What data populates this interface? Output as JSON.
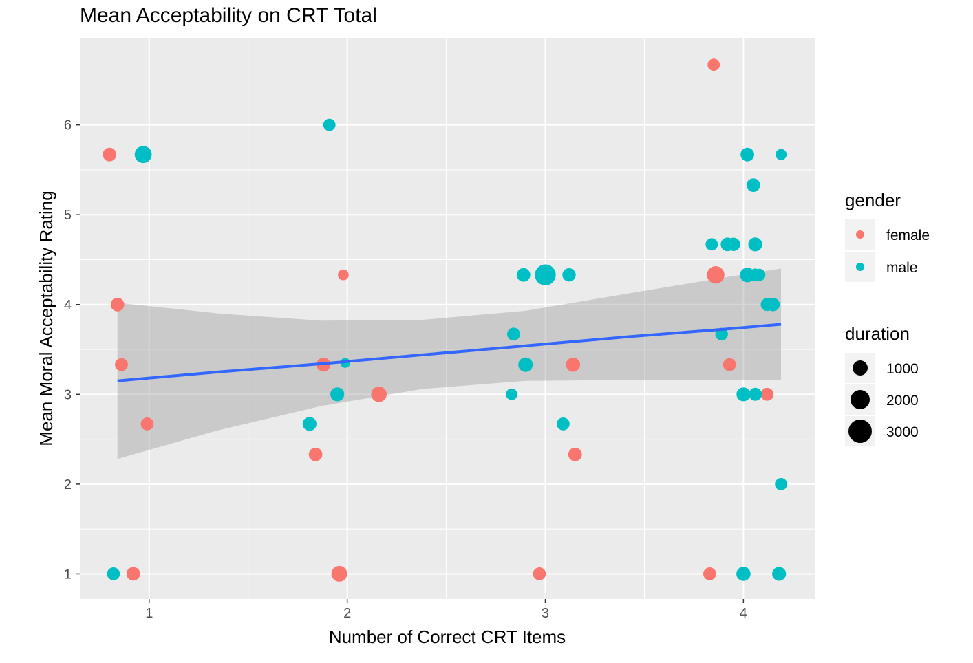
{
  "chart_data": {
    "type": "scatter",
    "title": "Mean Acceptability on CRT Total",
    "xlabel": "Number of Correct CRT Items",
    "ylabel": "Mean Moral Acceptability Rating",
    "xlim": [
      0.65,
      4.36
    ],
    "ylim": [
      0.72,
      6.97
    ],
    "x_ticks": [
      1,
      2,
      3,
      4
    ],
    "y_ticks": [
      1,
      2,
      3,
      4,
      5,
      6
    ],
    "grid": true,
    "legend_position": "right",
    "colors": {
      "female": "#F8766D",
      "male": "#00BFC4",
      "trend": "#3366FF",
      "band": "#999999",
      "panel": "#EBEBEB"
    },
    "legends": {
      "gender": {
        "title": "gender",
        "entries": [
          "female",
          "male"
        ]
      },
      "duration": {
        "title": "duration",
        "entries": [
          "1000",
          "2000",
          "3000"
        ],
        "values": [
          1000,
          2000,
          3000
        ]
      }
    },
    "trend": {
      "x": [
        0.84,
        1.35,
        1.87,
        2.38,
        2.9,
        3.41,
        3.93,
        4.19
      ],
      "y": [
        3.15,
        3.25,
        3.34,
        3.44,
        3.54,
        3.64,
        3.73,
        3.78
      ],
      "lower": [
        2.28,
        2.6,
        2.87,
        3.06,
        3.15,
        3.16,
        3.16,
        3.16
      ],
      "upper": [
        4.02,
        3.9,
        3.82,
        3.83,
        3.93,
        4.12,
        4.31,
        4.4
      ]
    },
    "series": [
      {
        "name": "female",
        "points": [
          {
            "x": 0.8,
            "y": 5.67,
            "duration": 1500
          },
          {
            "x": 0.84,
            "y": 4.0,
            "duration": 1500
          },
          {
            "x": 0.86,
            "y": 3.33,
            "duration": 1300
          },
          {
            "x": 0.99,
            "y": 2.67,
            "duration": 1300
          },
          {
            "x": 0.92,
            "y": 1.0,
            "duration": 1500
          },
          {
            "x": 1.88,
            "y": 3.33,
            "duration": 1600
          },
          {
            "x": 1.98,
            "y": 4.33,
            "duration": 700
          },
          {
            "x": 2.16,
            "y": 3.0,
            "duration": 2200
          },
          {
            "x": 1.84,
            "y": 2.33,
            "duration": 1500
          },
          {
            "x": 1.96,
            "y": 1.0,
            "duration": 2300
          },
          {
            "x": 3.14,
            "y": 3.33,
            "duration": 1700
          },
          {
            "x": 3.15,
            "y": 2.33,
            "duration": 1500
          },
          {
            "x": 2.97,
            "y": 1.0,
            "duration": 1300
          },
          {
            "x": 3.85,
            "y": 6.67,
            "duration": 1100
          },
          {
            "x": 3.86,
            "y": 4.33,
            "duration": 3000
          },
          {
            "x": 3.93,
            "y": 3.33,
            "duration": 1300
          },
          {
            "x": 4.12,
            "y": 3.0,
            "duration": 1300
          },
          {
            "x": 3.83,
            "y": 1.0,
            "duration": 1300
          }
        ]
      },
      {
        "name": "male",
        "points": [
          {
            "x": 0.97,
            "y": 5.67,
            "duration": 2800
          },
          {
            "x": 0.82,
            "y": 1.0,
            "duration": 1300
          },
          {
            "x": 1.91,
            "y": 6.0,
            "duration": 1100
          },
          {
            "x": 1.81,
            "y": 2.67,
            "duration": 1600
          },
          {
            "x": 1.95,
            "y": 3.0,
            "duration": 1600
          },
          {
            "x": 1.99,
            "y": 3.35,
            "duration": 500
          },
          {
            "x": 2.89,
            "y": 4.33,
            "duration": 1500
          },
          {
            "x": 3.0,
            "y": 4.33,
            "duration": 4800
          },
          {
            "x": 3.12,
            "y": 4.33,
            "duration": 1400
          },
          {
            "x": 2.84,
            "y": 3.67,
            "duration": 1300
          },
          {
            "x": 2.9,
            "y": 3.33,
            "duration": 1800
          },
          {
            "x": 2.83,
            "y": 3.0,
            "duration": 900
          },
          {
            "x": 3.09,
            "y": 2.67,
            "duration": 1300
          },
          {
            "x": 4.02,
            "y": 5.67,
            "duration": 1500
          },
          {
            "x": 4.19,
            "y": 5.67,
            "duration": 800
          },
          {
            "x": 4.05,
            "y": 5.33,
            "duration": 1500
          },
          {
            "x": 3.84,
            "y": 4.67,
            "duration": 1100
          },
          {
            "x": 3.92,
            "y": 4.67,
            "duration": 1500
          },
          {
            "x": 3.95,
            "y": 4.67,
            "duration": 1400
          },
          {
            "x": 4.06,
            "y": 4.67,
            "duration": 1600
          },
          {
            "x": 4.02,
            "y": 4.33,
            "duration": 1900
          },
          {
            "x": 4.06,
            "y": 4.33,
            "duration": 1200
          },
          {
            "x": 4.08,
            "y": 4.33,
            "duration": 1100
          },
          {
            "x": 3.89,
            "y": 3.67,
            "duration": 1200
          },
          {
            "x": 4.12,
            "y": 4.0,
            "duration": 1300
          },
          {
            "x": 4.15,
            "y": 4.0,
            "duration": 1400
          },
          {
            "x": 4.0,
            "y": 3.0,
            "duration": 1600
          },
          {
            "x": 4.06,
            "y": 3.0,
            "duration": 1300
          },
          {
            "x": 4.19,
            "y": 2.0,
            "duration": 1100
          },
          {
            "x": 4.0,
            "y": 1.0,
            "duration": 1700
          },
          {
            "x": 4.18,
            "y": 1.0,
            "duration": 1600
          }
        ]
      }
    ]
  }
}
